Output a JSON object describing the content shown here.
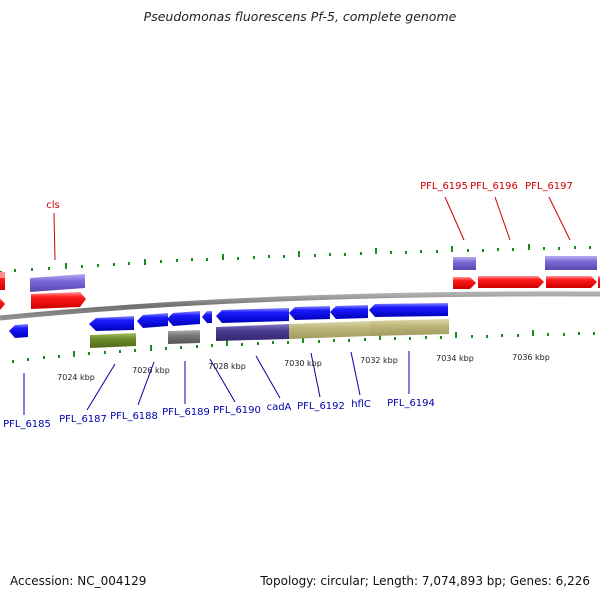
{
  "title": "Pseudomonas fluorescens Pf-5, complete genome",
  "footer": {
    "accession": "Accession: NC_004129",
    "summary": "Topology: circular; Length: 7,074,893 bp; Genes: 6,226"
  },
  "colors": {
    "backbone": "#808080",
    "forward_cds": "#ff0000",
    "reverse_cds": "#0000ff",
    "forward_label": "#cc0000",
    "reverse_label": "#0000aa",
    "tick": "#1a8a1a"
  },
  "scale_labels": [
    "7024 kbp",
    "7026 kbp",
    "7028 kbp",
    "7030 kbp",
    "7032 kbp",
    "7034 kbp",
    "7036 kbp"
  ],
  "gene_labels": {
    "forward": [
      "cls",
      "PFL_6195",
      "PFL_6196",
      "PFL_6197"
    ],
    "reverse": [
      "PFL_6185",
      "PFL_6187",
      "PFL_6188",
      "PFL_6189",
      "PFL_6190",
      "cadA",
      "PFL_6192",
      "hflC",
      "PFL_6194"
    ]
  }
}
